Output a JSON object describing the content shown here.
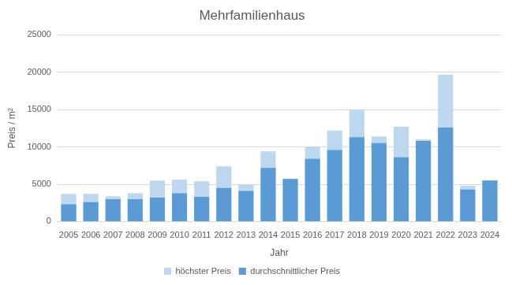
{
  "chart_data": {
    "type": "bar",
    "title": "Mehrfamilienhaus",
    "x_label": "Jahr",
    "y_label": "Preis / m²",
    "categories": [
      "2005",
      "2006",
      "2007",
      "2008",
      "2009",
      "2010",
      "2011",
      "2012",
      "2013",
      "2014",
      "2015",
      "2016",
      "2017",
      "2018",
      "2019",
      "2020",
      "2021",
      "2022",
      "2023",
      "2024"
    ],
    "series": [
      {
        "name": "höchster Preis",
        "color": "#bdd7ee",
        "values": [
          3700,
          3700,
          3400,
          3800,
          5500,
          5600,
          5400,
          7400,
          5000,
          9400,
          5700,
          10000,
          12200,
          15000,
          11400,
          12700,
          11000,
          19700,
          4800,
          5500
        ]
      },
      {
        "name": "durchschnittlicher Preis",
        "color": "#5b9bd5",
        "values": [
          2300,
          2600,
          3000,
          3000,
          3200,
          3800,
          3300,
          4500,
          4100,
          7200,
          5700,
          8400,
          9600,
          11300,
          10500,
          8600,
          10800,
          12600,
          4300,
          5500
        ]
      }
    ],
    "ylim": [
      0,
      25000
    ],
    "yticks": [
      0,
      5000,
      10000,
      15000,
      20000,
      25000
    ],
    "grid": true,
    "legend": "bottom"
  }
}
